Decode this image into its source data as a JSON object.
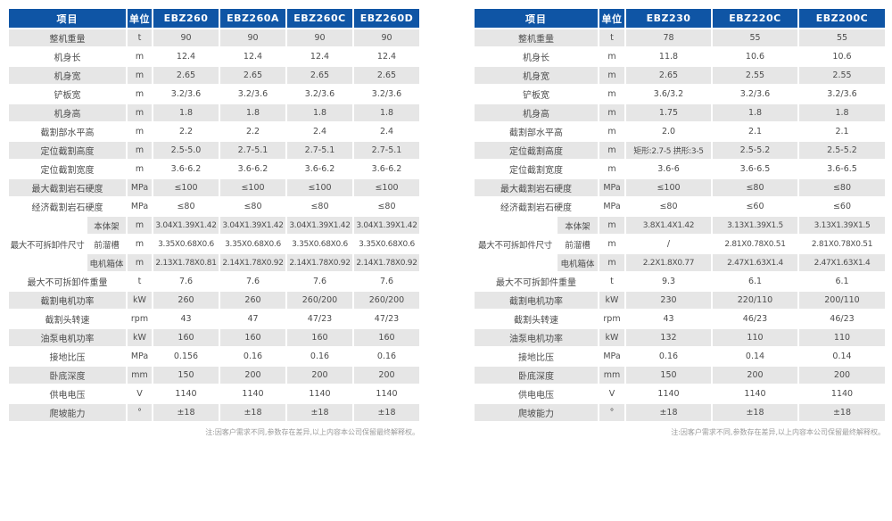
{
  "colors": {
    "header_bg": "#0f55a5",
    "header_text": "#ffffff",
    "row_stripe": "#e6e6e6",
    "body_text": "#4d4d4d",
    "note_text": "#9b9b9b"
  },
  "note": "注:因客户需求不同,参数存在差异,以上内容本公司保留最终解释权。",
  "tables": [
    {
      "headers": [
        "项目",
        "单位",
        "EBZ260",
        "EBZ260A",
        "EBZ260C",
        "EBZ260D"
      ],
      "rows": [
        {
          "label": "整机重量",
          "unit": "t",
          "values": [
            "90",
            "90",
            "90",
            "90"
          ]
        },
        {
          "label": "机身长",
          "unit": "m",
          "values": [
            "12.4",
            "12.4",
            "12.4",
            "12.4"
          ]
        },
        {
          "label": "机身宽",
          "unit": "m",
          "values": [
            "2.65",
            "2.65",
            "2.65",
            "2.65"
          ]
        },
        {
          "label": "铲板宽",
          "unit": "m",
          "values": [
            "3.2/3.6",
            "3.2/3.6",
            "3.2/3.6",
            "3.2/3.6"
          ]
        },
        {
          "label": "机身高",
          "unit": "m",
          "values": [
            "1.8",
            "1.8",
            "1.8",
            "1.8"
          ]
        },
        {
          "label": "截割部水平高",
          "unit": "m",
          "values": [
            "2.2",
            "2.2",
            "2.4",
            "2.4"
          ]
        },
        {
          "label": "定位截割高度",
          "unit": "m",
          "values": [
            "2.5-5.0",
            "2.7-5.1",
            "2.7-5.1",
            "2.7-5.1"
          ]
        },
        {
          "label": "定位截割宽度",
          "unit": "m",
          "values": [
            "3.6-6.2",
            "3.6-6.2",
            "3.6-6.2",
            "3.6-6.2"
          ]
        },
        {
          "label": "最大截割岩石硬度",
          "unit": "MPa",
          "values": [
            "≤100",
            "≤100",
            "≤100",
            "≤100"
          ]
        },
        {
          "label": "经济截割岩石硬度",
          "unit": "MPa",
          "values": [
            "≤80",
            "≤80",
            "≤80",
            "≤80"
          ]
        },
        {
          "group": "最大不可拆卸件尺寸",
          "sub": [
            {
              "label": "本体架",
              "unit": "m",
              "values": [
                "3.04X1.39X1.42",
                "3.04X1.39X1.42",
                "3.04X1.39X1.42",
                "3.04X1.39X1.42"
              ]
            },
            {
              "label": "前溜槽",
              "unit": "m",
              "values": [
                "3.35X0.68X0.6",
                "3.35X0.68X0.6",
                "3.35X0.68X0.6",
                "3.35X0.68X0.6"
              ]
            },
            {
              "label": "电机箱体",
              "unit": "m",
              "values": [
                "2.13X1.78X0.81",
                "2.14X1.78X0.92",
                "2.14X1.78X0.92",
                "2.14X1.78X0.92"
              ]
            }
          ]
        },
        {
          "label": "最大不可拆卸件重量",
          "unit": "t",
          "values": [
            "7.6",
            "7.6",
            "7.6",
            "7.6"
          ]
        },
        {
          "label": "截割电机功率",
          "unit": "kW",
          "values": [
            "260",
            "260",
            "260/200",
            "260/200"
          ]
        },
        {
          "label": "截割头转速",
          "unit": "rpm",
          "values": [
            "43",
            "47",
            "47/23",
            "47/23"
          ]
        },
        {
          "label": "油泵电机功率",
          "unit": "kW",
          "values": [
            "160",
            "160",
            "160",
            "160"
          ]
        },
        {
          "label": "接地比压",
          "unit": "MPa",
          "values": [
            "0.156",
            "0.16",
            "0.16",
            "0.16"
          ]
        },
        {
          "label": "卧底深度",
          "unit": "mm",
          "values": [
            "150",
            "200",
            "200",
            "200"
          ]
        },
        {
          "label": "供电电压",
          "unit": "V",
          "values": [
            "1140",
            "1140",
            "1140",
            "1140"
          ]
        },
        {
          "label": "爬坡能力",
          "unit": "°",
          "values": [
            "±18",
            "±18",
            "±18",
            "±18"
          ]
        }
      ]
    },
    {
      "headers": [
        "项目",
        "单位",
        "EBZ230",
        "EBZ220C",
        "EBZ200C"
      ],
      "rows": [
        {
          "label": "整机重量",
          "unit": "t",
          "values": [
            "78",
            "55",
            "55"
          ]
        },
        {
          "label": "机身长",
          "unit": "m",
          "values": [
            "11.8",
            "10.6",
            "10.6"
          ]
        },
        {
          "label": "机身宽",
          "unit": "m",
          "values": [
            "2.65",
            "2.55",
            "2.55"
          ]
        },
        {
          "label": "铲板宽",
          "unit": "m",
          "values": [
            "3.6/3.2",
            "3.2/3.6",
            "3.2/3.6"
          ]
        },
        {
          "label": "机身高",
          "unit": "m",
          "values": [
            "1.75",
            "1.8",
            "1.8"
          ]
        },
        {
          "label": "截割部水平高",
          "unit": "m",
          "values": [
            "2.0",
            "2.1",
            "2.1"
          ]
        },
        {
          "label": "定位截割高度",
          "unit": "m",
          "values": [
            "矩形:2.7-5 拱形:3-5",
            "2.5-5.2",
            "2.5-5.2"
          ]
        },
        {
          "label": "定位截割宽度",
          "unit": "m",
          "values": [
            "3.6-6",
            "3.6-6.5",
            "3.6-6.5"
          ]
        },
        {
          "label": "最大截割岩石硬度",
          "unit": "MPa",
          "values": [
            "≤100",
            "≤80",
            "≤80"
          ]
        },
        {
          "label": "经济截割岩石硬度",
          "unit": "MPa",
          "values": [
            "≤80",
            "≤60",
            "≤60"
          ]
        },
        {
          "group": "最大不可拆卸件尺寸",
          "sub": [
            {
              "label": "本体架",
              "unit": "m",
              "values": [
                "3.8X1.4X1.42",
                "3.13X1.39X1.5",
                "3.13X1.39X1.5"
              ]
            },
            {
              "label": "前溜槽",
              "unit": "m",
              "values": [
                "/",
                "2.81X0.78X0.51",
                "2.81X0.78X0.51"
              ]
            },
            {
              "label": "电机箱体",
              "unit": "m",
              "values": [
                "2.2X1.8X0.77",
                "2.47X1.63X1.4",
                "2.47X1.63X1.4"
              ]
            }
          ]
        },
        {
          "label": "最大不可拆卸件重量",
          "unit": "t",
          "values": [
            "9.3",
            "6.1",
            "6.1"
          ]
        },
        {
          "label": "截割电机功率",
          "unit": "kW",
          "values": [
            "230",
            "220/110",
            "200/110"
          ]
        },
        {
          "label": "截割头转速",
          "unit": "rpm",
          "values": [
            "43",
            "46/23",
            "46/23"
          ]
        },
        {
          "label": "油泵电机功率",
          "unit": "kW",
          "values": [
            "132",
            "110",
            "110"
          ]
        },
        {
          "label": "接地比压",
          "unit": "MPa",
          "values": [
            "0.16",
            "0.14",
            "0.14"
          ]
        },
        {
          "label": "卧底深度",
          "unit": "mm",
          "values": [
            "150",
            "200",
            "200"
          ]
        },
        {
          "label": "供电电压",
          "unit": "V",
          "values": [
            "1140",
            "1140",
            "1140"
          ]
        },
        {
          "label": "爬坡能力",
          "unit": "°",
          "values": [
            "±18",
            "±18",
            "±18"
          ]
        }
      ]
    }
  ]
}
